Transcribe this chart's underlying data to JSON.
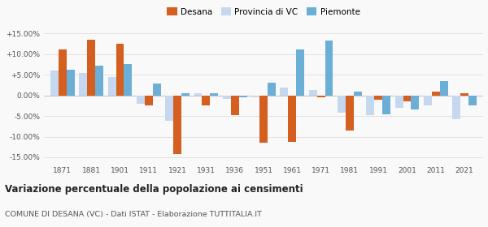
{
  "years": [
    1871,
    1881,
    1901,
    1911,
    1921,
    1931,
    1936,
    1951,
    1961,
    1971,
    1981,
    1991,
    2001,
    2011,
    2021
  ],
  "desana": [
    11.2,
    13.5,
    12.5,
    -2.5,
    -14.2,
    -2.5,
    -4.8,
    -11.5,
    -11.2,
    -0.5,
    -8.5,
    -1.0,
    -1.5,
    1.0,
    0.5
  ],
  "provincia_vc": [
    6.0,
    5.5,
    4.5,
    -2.0,
    -6.2,
    0.5,
    -0.8,
    -0.5,
    1.8,
    1.2,
    -4.2,
    -4.8,
    -3.0,
    -2.5,
    -5.8
  ],
  "piemonte": [
    6.2,
    7.2,
    7.5,
    2.8,
    0.6,
    0.6,
    -0.5,
    3.0,
    11.2,
    13.2,
    1.0,
    -4.5,
    -3.5,
    3.5,
    -2.5
  ],
  "desana_color": "#d45f1e",
  "provincia_color": "#c5d8f0",
  "piemonte_color": "#6baed6",
  "title": "Variazione percentuale della popolazione ai censimenti",
  "subtitle": "COMUNE DI DESANA (VC) - Dati ISTAT - Elaborazione TUTTITALIA.IT",
  "ylim": [
    -16.5,
    16.5
  ],
  "yticks": [
    -15.0,
    -10.0,
    -5.0,
    0.0,
    5.0,
    10.0,
    15.0
  ],
  "ytick_labels": [
    "-15.00%",
    "-10.00%",
    "-5.00%",
    "0.00%",
    "+5.00%",
    "+10.00%",
    "+15.00%"
  ],
  "bar_width": 0.28,
  "background_color": "#f9f9f9",
  "grid_color": "#dddddd"
}
